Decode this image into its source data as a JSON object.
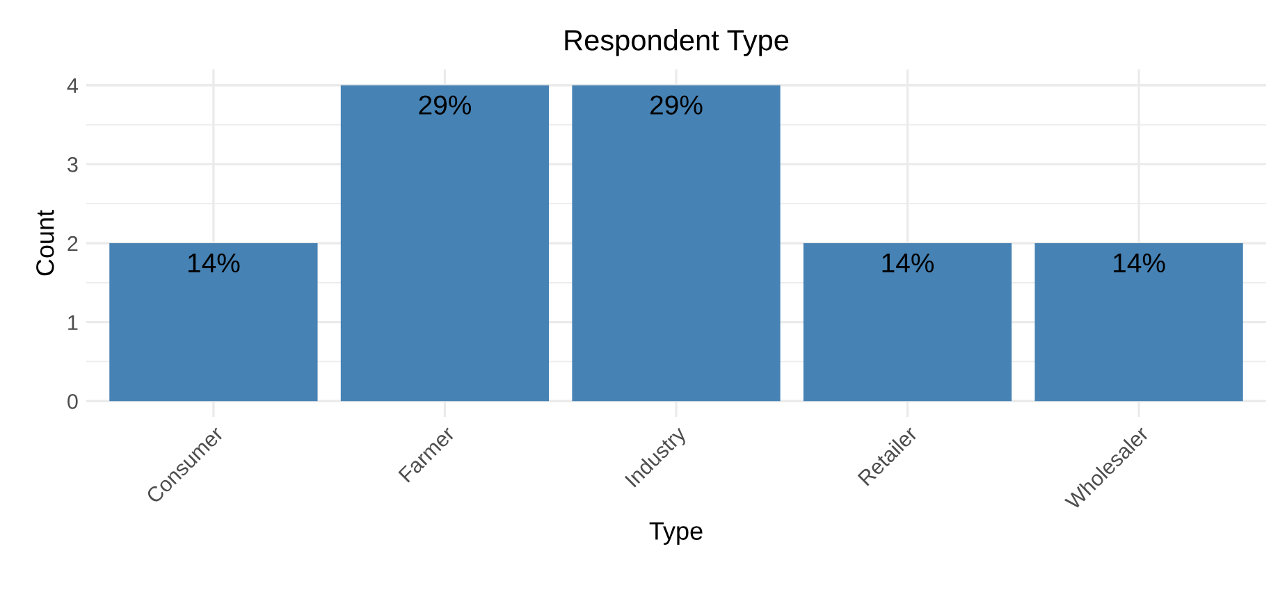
{
  "chart_data": {
    "type": "bar",
    "title": "Respondent Type",
    "xlabel": "Type",
    "ylabel": "Count",
    "categories": [
      "Consumer",
      "Farmer",
      "Industry",
      "Retailer",
      "Wholesaler"
    ],
    "values": [
      2,
      4,
      4,
      2,
      2
    ],
    "annotations": [
      {
        "text": "14%",
        "x": "Consumer",
        "y": 2
      },
      {
        "text": "29%",
        "x": "Farmer",
        "y": 4
      },
      {
        "text": "29%",
        "x": "Industry",
        "y": 4
      },
      {
        "text": "14%",
        "x": "Retailer",
        "y": 2
      },
      {
        "text": "14%",
        "x": "Wholesaler",
        "y": 2
      }
    ],
    "color": "#4682b4",
    "ylim": [
      -0.2,
      4.2
    ],
    "yticks": [
      0,
      1,
      2,
      3,
      4
    ],
    "grid": true,
    "legend": false
  }
}
